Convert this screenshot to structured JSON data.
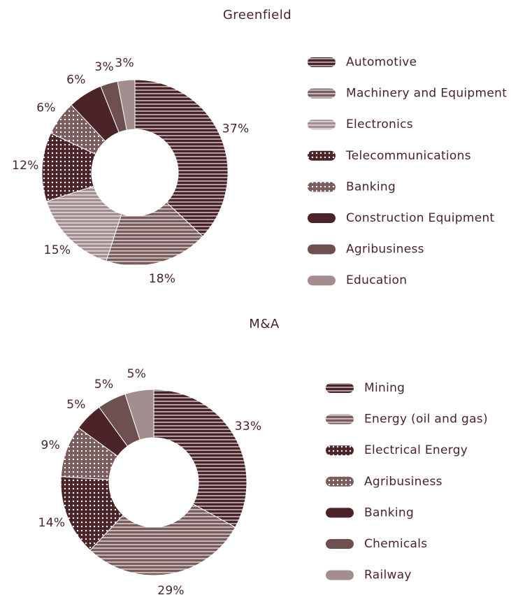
{
  "chart_data": [
    {
      "type": "donut",
      "title": "Greenfield",
      "categories": [
        "Automotive",
        "Machinery and Equipment",
        "Electronics",
        "Telecommunications",
        "Banking",
        "Construction Equipment",
        "Agribusiness",
        "Education"
      ],
      "values": [
        37,
        18,
        15,
        12,
        6,
        6,
        3,
        3
      ],
      "value_labels": [
        "37%",
        "18%",
        "15%",
        "12%",
        "6%",
        "6%",
        "3%",
        "3%"
      ],
      "colors": [
        "#4a2428",
        "#7a5c5d",
        "#a38e8f",
        "#4a2428",
        "#7a5c5d",
        "#4a2428",
        "#6e5051",
        "#a38e8f"
      ],
      "patterns": [
        "stripes",
        "stripes",
        "stripes",
        "dots",
        "dots",
        "solid",
        "solid",
        "solid"
      ],
      "legend": "right"
    },
    {
      "type": "donut",
      "title": "M&A",
      "categories": [
        "Mining",
        "Energy (oil and gas)",
        "Electrical Energy",
        "Agribusiness",
        "Banking",
        "Chemicals",
        "Railway"
      ],
      "values": [
        33,
        29,
        14,
        9,
        5,
        5,
        5
      ],
      "value_labels": [
        "33%",
        "29%",
        "14%",
        "9%",
        "5%",
        "5%",
        "5%"
      ],
      "colors": [
        "#4a2428",
        "#7a5c5d",
        "#4a2428",
        "#7a5c5d",
        "#4a2428",
        "#6e5051",
        "#a38e8f"
      ],
      "patterns": [
        "stripes",
        "stripes",
        "dots",
        "dots",
        "solid",
        "solid",
        "solid"
      ],
      "legend": "right"
    }
  ]
}
